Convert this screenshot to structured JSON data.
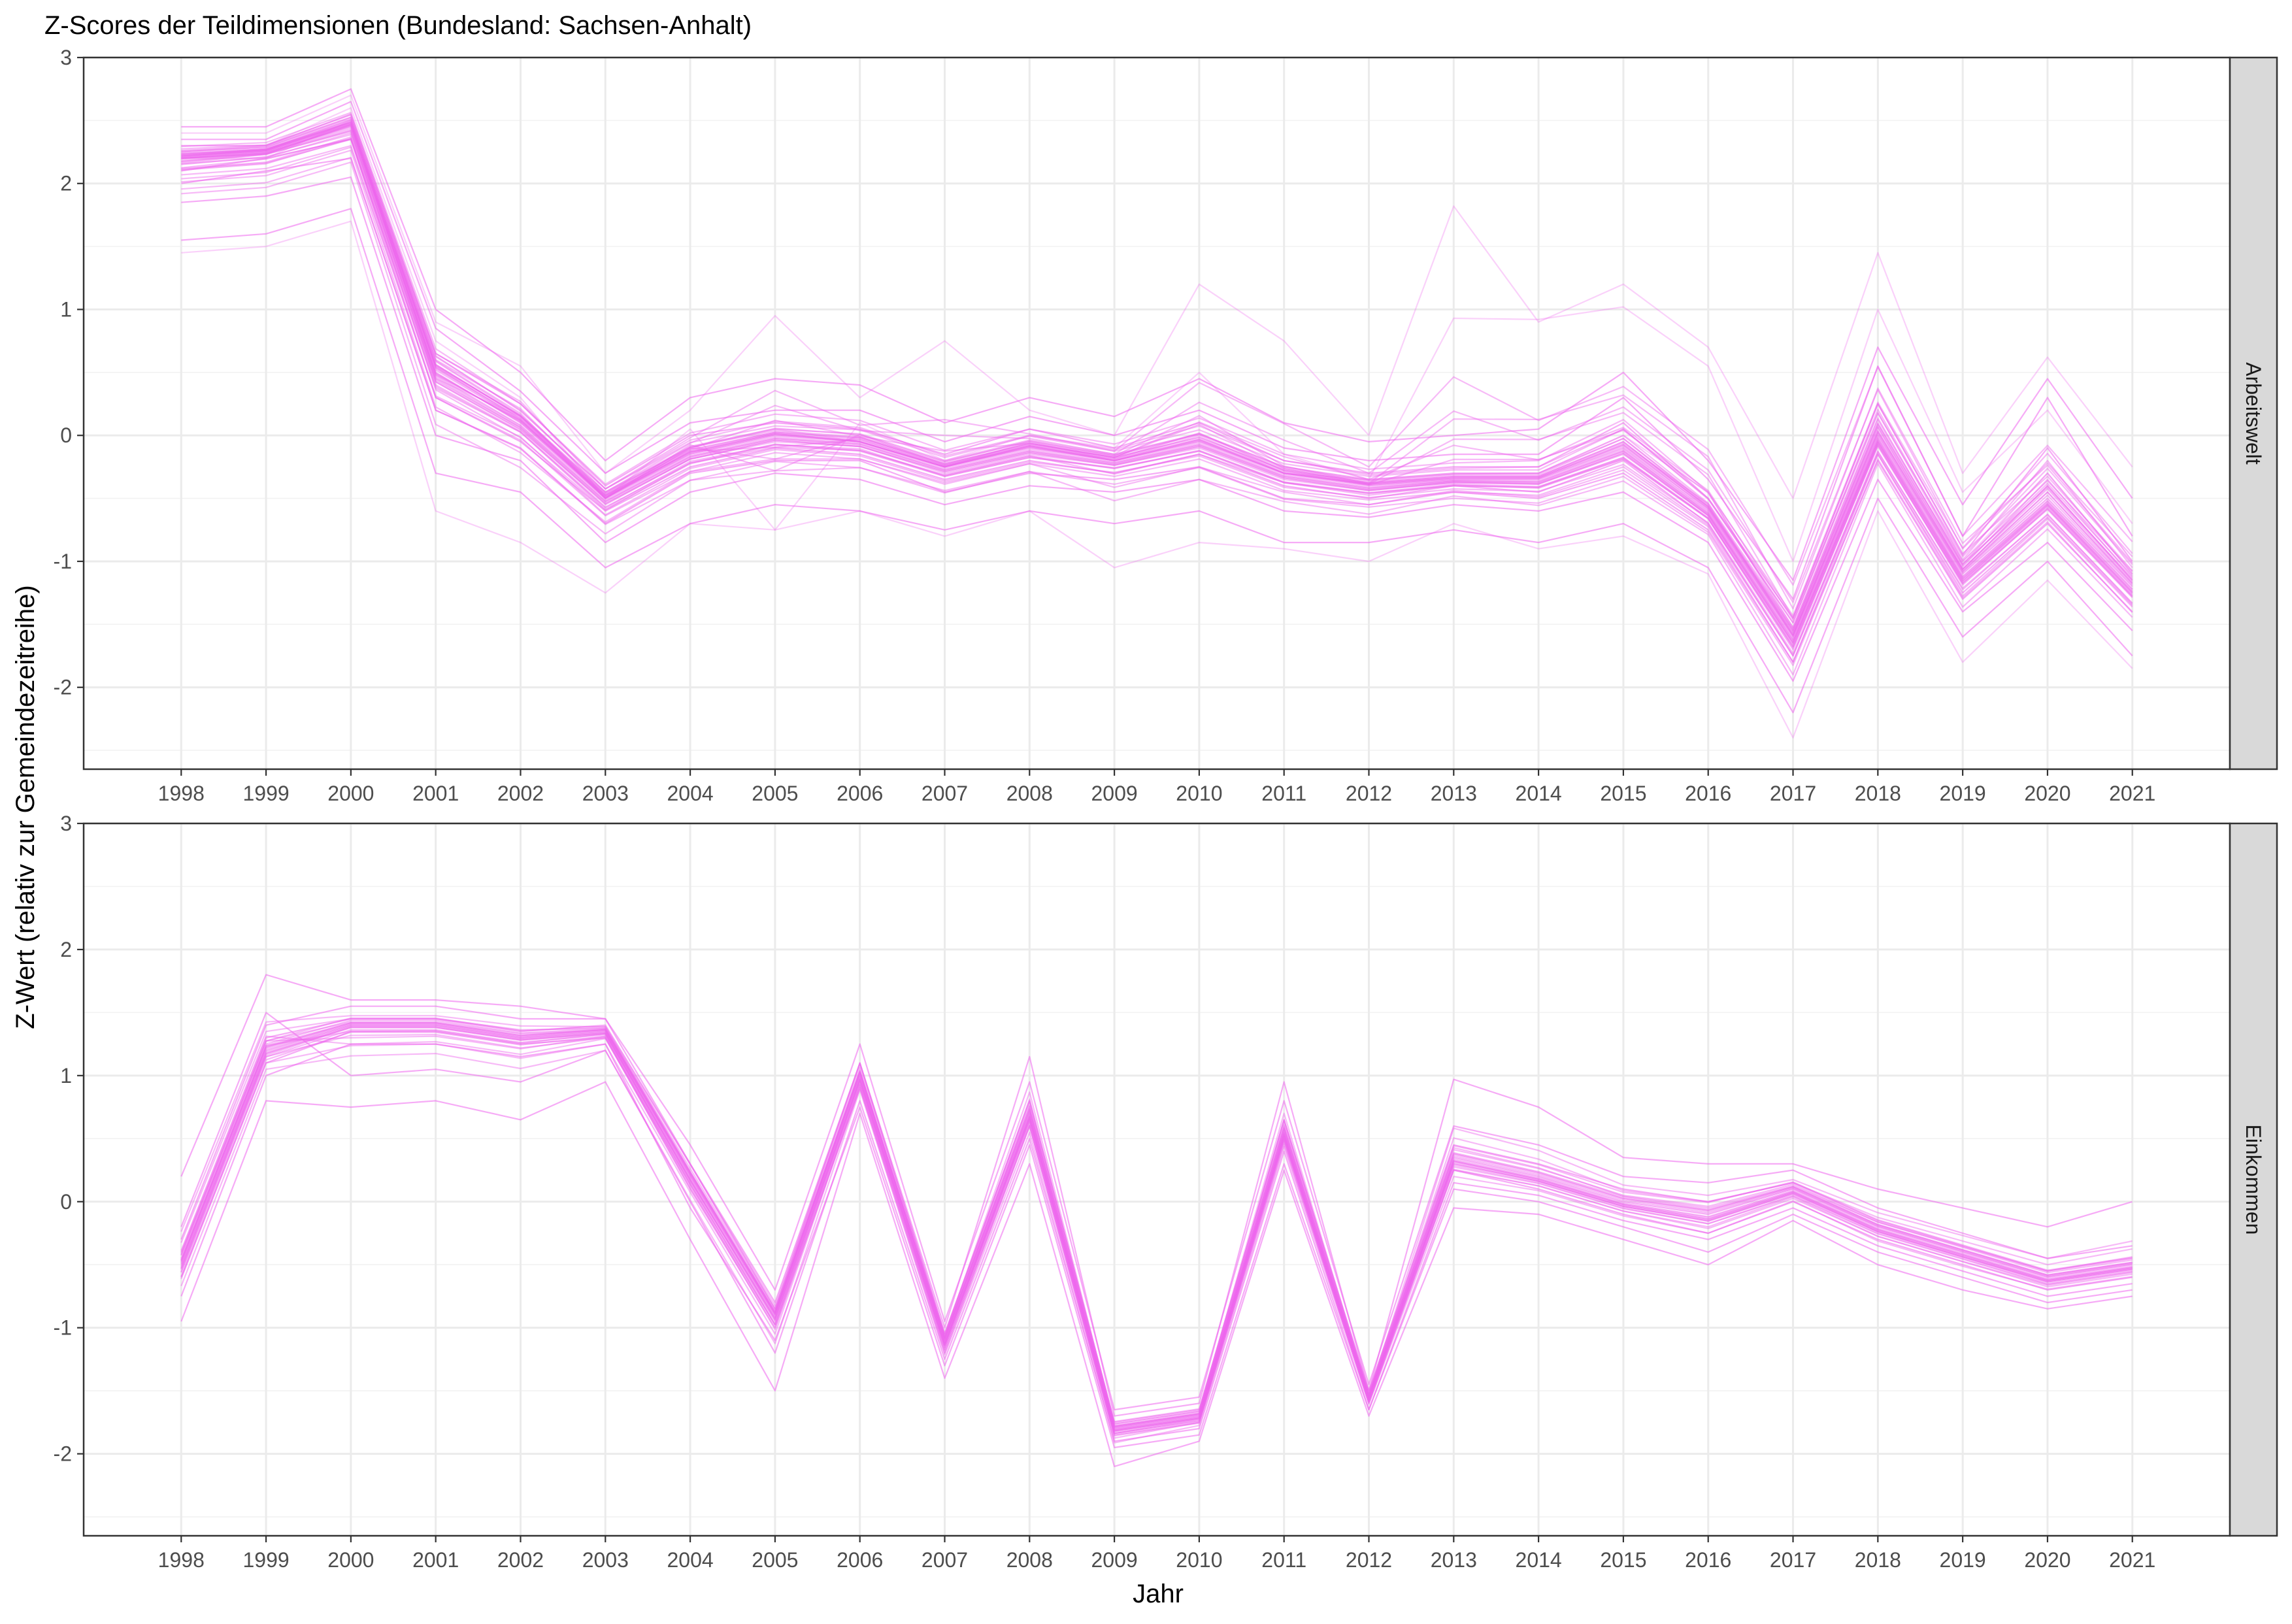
{
  "title": "Z-Scores der Teildimensionen (Bundesland: Sachsen-Anhalt)",
  "colors": {
    "series": "#ee66ee",
    "strip_background": "#d9d9d9",
    "grid": "#ebebeb",
    "panel_border": "#333333"
  },
  "chart_data": {
    "type": "line",
    "title": "Z-Scores der Teildimensionen (Bundesland: Sachsen-Anhalt)",
    "xlabel": "Jahr",
    "ylabel": "Z-Wert (relativ zur Gemeindezeitreihe)",
    "x": [
      1998,
      1999,
      2000,
      2001,
      2002,
      2003,
      2004,
      2005,
      2006,
      2007,
      2008,
      2009,
      2010,
      2011,
      2012,
      2013,
      2014,
      2015,
      2016,
      2017,
      2018,
      2019,
      2020,
      2021
    ],
    "x_tick_labels": [
      "1998",
      "1999",
      "2000",
      "2001",
      "2002",
      "2003",
      "2004",
      "2005",
      "2006",
      "2007",
      "2008",
      "2009",
      "2010",
      "2011",
      "2012",
      "2013",
      "2014",
      "2015",
      "2016",
      "2017",
      "2018",
      "2019",
      "2020",
      "2021"
    ],
    "ylim": [
      -2.65,
      3.0
    ],
    "y_ticks": [
      -2,
      -1,
      0,
      1,
      2,
      3
    ],
    "y_tick_labels": [
      "-2",
      "-1",
      "0",
      "1",
      "2",
      "3"
    ],
    "grid": true,
    "legend": "none",
    "note_on_series": "Each panel shows many overlapping semi-transparent municipality lines; values below are approximate envelope series read from the plot.",
    "facets": [
      {
        "name": "Arbeitswelt",
        "series": [
          {
            "values": [
              2.2,
              2.25,
              2.45,
              0.5,
              0.1,
              -0.5,
              -0.15,
              0.0,
              -0.05,
              -0.25,
              -0.1,
              -0.2,
              -0.05,
              -0.3,
              -0.4,
              -0.35,
              -0.35,
              -0.1,
              -0.6,
              -1.6,
              0.0,
              -1.1,
              -0.5,
              -1.2
            ]
          },
          {
            "values": [
              2.35,
              2.35,
              2.65,
              0.85,
              0.35,
              -0.3,
              0.1,
              0.2,
              0.2,
              -0.05,
              0.15,
              0.0,
              0.2,
              -0.1,
              -0.2,
              -0.15,
              -0.15,
              0.3,
              -0.35,
              -1.3,
              0.55,
              -0.8,
              0.3,
              -0.8
            ]
          },
          {
            "values": [
              1.85,
              1.9,
              2.05,
              0.0,
              -0.2,
              -0.85,
              -0.45,
              -0.3,
              -0.35,
              -0.55,
              -0.4,
              -0.45,
              -0.35,
              -0.6,
              -0.65,
              -0.55,
              -0.6,
              -0.45,
              -0.85,
              -1.95,
              -0.35,
              -1.4,
              -0.85,
              -1.55
            ]
          },
          {
            "values": [
              2.1,
              2.2,
              2.35,
              0.3,
              -0.05,
              -0.6,
              -0.25,
              -0.1,
              -0.15,
              -0.35,
              -0.2,
              -0.3,
              -0.15,
              -0.4,
              -0.5,
              -0.4,
              -0.45,
              -0.2,
              -0.7,
              -1.75,
              -0.15,
              -1.25,
              -0.65,
              -1.35
            ]
          },
          {
            "values": [
              2.3,
              2.3,
              2.55,
              0.65,
              0.25,
              -0.4,
              0.0,
              0.1,
              0.05,
              -0.15,
              0.05,
              -0.1,
              0.1,
              -0.2,
              -0.3,
              -0.25,
              -0.25,
              0.1,
              -0.5,
              -1.45,
              0.25,
              -0.95,
              -0.1,
              -1.0
            ]
          },
          {
            "values": [
              2.45,
              2.45,
              2.75,
              1.0,
              0.5,
              -0.2,
              0.3,
              0.45,
              0.4,
              0.1,
              0.3,
              0.15,
              0.45,
              0.1,
              -0.05,
              0.0,
              0.05,
              0.5,
              -0.2,
              -1.15,
              0.7,
              -0.55,
              0.45,
              -0.5
            ]
          },
          {
            "values": [
              1.55,
              1.6,
              1.8,
              -0.3,
              -0.45,
              -1.05,
              -0.7,
              -0.55,
              -0.6,
              -0.75,
              -0.6,
              -0.7,
              -0.6,
              -0.85,
              -0.85,
              -0.75,
              -0.85,
              -0.7,
              -1.05,
              -2.2,
              -0.5,
              -1.6,
              -1.0,
              -1.75
            ]
          },
          {
            "values": [
              2.0,
              2.1,
              2.2,
              0.2,
              -0.1,
              -0.7,
              -0.3,
              -0.2,
              -0.2,
              -0.45,
              -0.3,
              -0.35,
              -0.25,
              -0.5,
              -0.55,
              -0.45,
              -0.5,
              -0.3,
              -0.75,
              -1.8,
              -0.2,
              -1.3,
              -0.7,
              -1.4
            ]
          },
          {
            "values": [
              2.4,
              2.4,
              2.7,
              0.9,
              0.55,
              -0.3,
              0.2,
              0.95,
              0.3,
              0.75,
              0.2,
              0.0,
              1.2,
              0.75,
              0.0,
              1.82,
              0.9,
              1.2,
              0.7,
              -0.5,
              1.45,
              -0.3,
              0.62,
              -0.25
            ]
          },
          {
            "values": [
              1.45,
              1.5,
              1.7,
              -0.6,
              -0.85,
              -1.25,
              -0.7,
              -0.75,
              -0.6,
              -0.8,
              -0.6,
              -1.05,
              -0.85,
              -0.9,
              -1.0,
              -0.7,
              -0.9,
              -0.8,
              -1.1,
              -2.4,
              -0.6,
              -1.8,
              -1.15,
              -1.85
            ]
          },
          {
            "values": [
              2.2,
              2.2,
              2.5,
              0.45,
              0.15,
              -0.45,
              -0.1,
              0.05,
              -0.05,
              -0.25,
              -0.05,
              -0.2,
              0.0,
              -0.3,
              -0.35,
              0.93,
              0.92,
              1.02,
              0.55,
              -1.0,
              1.0,
              -0.45,
              0.2,
              -0.7
            ]
          },
          {
            "values": [
              2.25,
              2.3,
              2.6,
              0.75,
              0.3,
              -0.5,
              0.05,
              -0.75,
              0.1,
              -0.2,
              0.0,
              -0.1,
              0.5,
              -0.15,
              -0.35,
              -0.3,
              -0.3,
              0.0,
              -0.45,
              -1.55,
              0.1,
              -1.0,
              -0.3,
              -1.1
            ]
          }
        ]
      },
      {
        "name": "Einkommen",
        "series": [
          {
            "values": [
              -0.5,
              1.2,
              1.4,
              1.4,
              1.3,
              1.35,
              0.2,
              -0.9,
              1.0,
              -1.1,
              0.7,
              -1.8,
              -1.7,
              0.55,
              -1.55,
              0.35,
              0.2,
              0.0,
              -0.1,
              0.1,
              -0.2,
              -0.4,
              -0.6,
              -0.5
            ]
          },
          {
            "values": [
              -0.3,
              1.4,
              1.55,
              1.55,
              1.45,
              1.45,
              0.45,
              -0.7,
              1.25,
              -0.95,
              0.95,
              -1.65,
              -1.55,
              0.8,
              -1.45,
              0.6,
              0.45,
              0.2,
              0.15,
              0.25,
              -0.05,
              -0.25,
              -0.45,
              -0.35
            ]
          },
          {
            "values": [
              -0.75,
              1.0,
              1.25,
              1.25,
              1.15,
              1.25,
              -0.05,
              -1.1,
              0.75,
              -1.3,
              0.45,
              -1.95,
              -1.85,
              0.3,
              -1.65,
              0.1,
              0.0,
              -0.2,
              -0.4,
              -0.1,
              -0.4,
              -0.6,
              -0.8,
              -0.7
            ]
          },
          {
            "values": [
              0.2,
              1.8,
              1.6,
              1.6,
              1.55,
              1.45,
              0.3,
              -0.8,
              1.1,
              -1.0,
              1.15,
              -1.7,
              -1.6,
              0.95,
              -1.5,
              0.97,
              0.75,
              0.35,
              0.3,
              0.3,
              0.1,
              -0.05,
              -0.2,
              0.0
            ]
          },
          {
            "values": [
              -0.95,
              0.8,
              0.75,
              0.8,
              0.65,
              0.95,
              -0.3,
              -1.5,
              0.7,
              -1.4,
              0.3,
              -2.1,
              -1.9,
              0.25,
              -1.7,
              -0.05,
              -0.1,
              -0.3,
              -0.5,
              -0.15,
              -0.5,
              -0.7,
              -0.85,
              -0.75
            ]
          },
          {
            "values": [
              -0.6,
              1.1,
              1.35,
              1.35,
              1.25,
              1.3,
              0.1,
              -1.0,
              0.9,
              -1.2,
              0.6,
              -1.85,
              -1.75,
              0.5,
              -1.6,
              0.25,
              0.1,
              -0.1,
              -0.25,
              0.0,
              -0.3,
              -0.5,
              -0.7,
              -0.6
            ]
          },
          {
            "values": [
              -0.4,
              1.3,
              1.45,
              1.45,
              1.35,
              1.4,
              0.3,
              -0.85,
              1.1,
              -1.05,
              0.8,
              -1.75,
              -1.65,
              0.65,
              -1.5,
              0.45,
              0.3,
              0.1,
              0.0,
              0.15,
              -0.15,
              -0.35,
              -0.55,
              -0.45
            ]
          },
          {
            "values": [
              -0.2,
              1.5,
              1.0,
              1.05,
              0.95,
              1.2,
              0.0,
              -1.2,
              0.8,
              -1.25,
              0.5,
              -1.9,
              -1.8,
              0.4,
              -1.65,
              0.15,
              0.05,
              -0.15,
              -0.3,
              -0.05,
              -0.35,
              -0.55,
              -0.75,
              -0.65
            ]
          }
        ]
      }
    ]
  }
}
